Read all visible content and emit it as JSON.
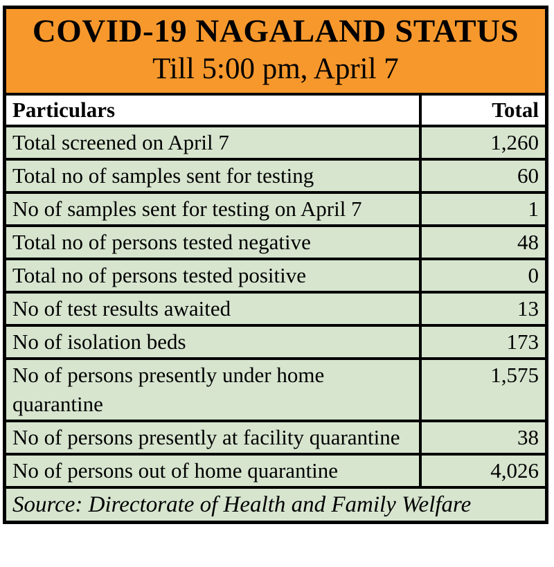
{
  "banner": {
    "title": "COVID-19 NAGALAND STATUS",
    "subtitle": "Till 5:00 pm, April 7"
  },
  "table": {
    "headers": {
      "particulars": "Particulars",
      "total": "Total"
    },
    "rows": [
      {
        "label": "Total screened on April 7",
        "value": "1,260"
      },
      {
        "label": "Total no of samples sent for testing",
        "value": "60"
      },
      {
        "label": "No of samples sent for testing on April 7",
        "value": "1"
      },
      {
        "label": "Total no of persons tested negative",
        "value": "48"
      },
      {
        "label": "Total no of persons tested positive",
        "value": "0"
      },
      {
        "label": "No of test results awaited",
        "value": "13"
      },
      {
        "label": "No of isolation beds",
        "value": "173"
      },
      {
        "label": "No of persons presently under home quarantine",
        "value": "1,575"
      },
      {
        "label": "No of persons presently at facility quarantine",
        "value": "38"
      },
      {
        "label": "No of persons out of home quarantine",
        "value": "4,026"
      }
    ],
    "source": "Source: Directorate of Health and Family Welfare"
  },
  "colors": {
    "banner_bg": "#F7982D",
    "row_bg": "#D7E5CF",
    "header_bg": "#FFFFFF",
    "border": "#000000"
  },
  "chart_data": {
    "type": "table",
    "title": "COVID-19 NAGALAND STATUS",
    "subtitle": "Till 5:00 pm, April 7",
    "columns": [
      "Particulars",
      "Total"
    ],
    "rows": [
      [
        "Total screened on April 7",
        1260
      ],
      [
        "Total no of samples sent for testing",
        60
      ],
      [
        "No of samples sent for testing on April 7",
        1
      ],
      [
        "Total no of persons tested negative",
        48
      ],
      [
        "Total no of persons tested positive",
        0
      ],
      [
        "No of test results awaited",
        13
      ],
      [
        "No of isolation beds",
        173
      ],
      [
        "No of persons presently under home quarantine",
        1575
      ],
      [
        "No of persons presently at facility quarantine",
        38
      ],
      [
        "No of persons out of home quarantine",
        4026
      ]
    ],
    "source": "Source: Directorate of Health and Family Welfare"
  }
}
